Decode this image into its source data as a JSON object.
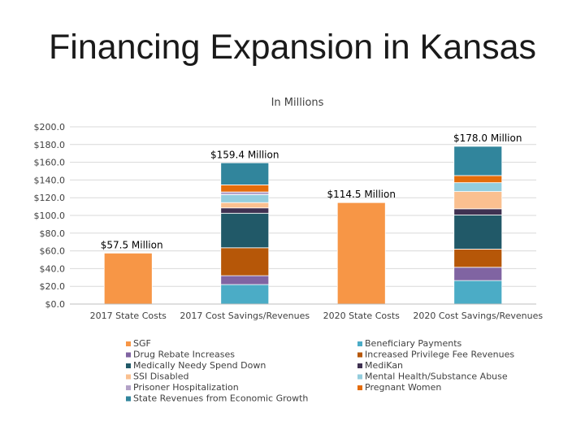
{
  "slide": {
    "title": "Financing Expansion in Kansas"
  },
  "chart_data": {
    "type": "bar",
    "stacked": true,
    "title": "",
    "subtitle": "In Millions",
    "xlabel": "",
    "ylabel": "",
    "ylim": [
      0,
      200
    ],
    "yticks": [
      "$0.0",
      "$20.0",
      "$40.0",
      "$60.0",
      "$80.0",
      "$100.0",
      "$120.0",
      "$140.0",
      "$160.0",
      "$180.0",
      "$200.0"
    ],
    "grid": true,
    "legend_position": "bottom",
    "categories": [
      "2017 State Costs",
      "2017 Cost Savings/Revenues",
      "2020 State Costs",
      "2020 Cost Savings/Revenues"
    ],
    "series": [
      {
        "name": "SGF",
        "color": "#F79646",
        "values": [
          57.5,
          0,
          114.5,
          0
        ]
      },
      {
        "name": "Beneficiary Payments",
        "color": "#4BACC6",
        "values": [
          0,
          22.0,
          0,
          26.5
        ]
      },
      {
        "name": "Drug Rebate Increases",
        "color": "#8064A2",
        "values": [
          0,
          10.0,
          0,
          15.0
        ]
      },
      {
        "name": "Increased Privilege Fee Revenues",
        "color": "#B65708",
        "values": [
          0,
          31.5,
          0,
          20.5
        ]
      },
      {
        "name": "Medically Needy Spend Down",
        "color": "#215968",
        "values": [
          0,
          39.0,
          0,
          38.5
        ]
      },
      {
        "name": "MediKan",
        "color": "#3F3151",
        "values": [
          0,
          6.0,
          0,
          7.0
        ]
      },
      {
        "name": "SSI Disabled",
        "color": "#FAC090",
        "values": [
          0,
          6.0,
          0,
          19.5
        ]
      },
      {
        "name": "Mental Health/Substance Abuse",
        "color": "#93CDDD",
        "values": [
          0,
          9.0,
          0,
          10.0
        ]
      },
      {
        "name": "Prisoner Hospitalization",
        "color": "#B3A2C7",
        "values": [
          0,
          3.0,
          0,
          0
        ]
      },
      {
        "name": "Pregnant Women",
        "color": "#E46C0A",
        "values": [
          0,
          8.0,
          0,
          8.0
        ]
      },
      {
        "name": "State Revenues from Economic Growth",
        "color": "#31859C",
        "values": [
          0,
          24.9,
          0,
          33.0
        ]
      }
    ],
    "annotations": [
      "$57.5 Million",
      "$159.4 Million",
      "$114.5 Million",
      "$178.0 Million"
    ]
  }
}
